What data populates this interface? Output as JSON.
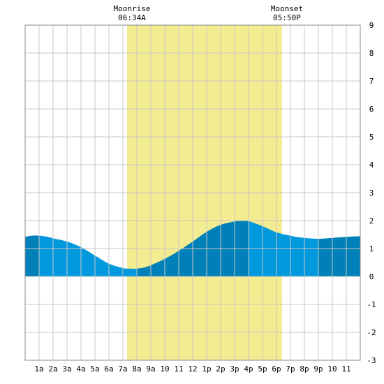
{
  "header": {
    "moonrise_label": "Moonrise",
    "moonrise_time": "06:34A",
    "moonset_label": "Moonset",
    "moonset_time": "05:50P"
  },
  "colors": {
    "daylight": "#f3ec90",
    "tide_light": "#0099dd",
    "tide_dark": "#0080b8",
    "grid": "#c8c8c8",
    "border": "#888888"
  },
  "chart_data": {
    "type": "area",
    "title": "",
    "xlabel": "",
    "ylabel": "",
    "xlim": [
      0,
      24
    ],
    "ylim": [
      -3,
      9
    ],
    "grid": true,
    "x_ticks": [
      {
        "x": 1,
        "label": "1a"
      },
      {
        "x": 2,
        "label": "2a"
      },
      {
        "x": 3,
        "label": "3a"
      },
      {
        "x": 4,
        "label": "4a"
      },
      {
        "x": 5,
        "label": "5a"
      },
      {
        "x": 6,
        "label": "6a"
      },
      {
        "x": 7,
        "label": "7a"
      },
      {
        "x": 8,
        "label": "8a"
      },
      {
        "x": 9,
        "label": "9a"
      },
      {
        "x": 10,
        "label": "10"
      },
      {
        "x": 11,
        "label": "11"
      },
      {
        "x": 12,
        "label": "12"
      },
      {
        "x": 13,
        "label": "1p"
      },
      {
        "x": 14,
        "label": "2p"
      },
      {
        "x": 15,
        "label": "3p"
      },
      {
        "x": 16,
        "label": "4p"
      },
      {
        "x": 17,
        "label": "5p"
      },
      {
        "x": 18,
        "label": "6p"
      },
      {
        "x": 19,
        "label": "7p"
      },
      {
        "x": 20,
        "label": "8p"
      },
      {
        "x": 21,
        "label": "9p"
      },
      {
        "x": 22,
        "label": "10"
      },
      {
        "x": 23,
        "label": "11"
      }
    ],
    "y_ticks": [
      -3,
      -2,
      -1,
      0,
      1,
      2,
      3,
      4,
      5,
      6,
      7,
      8,
      9
    ],
    "moon_visible": {
      "start": 7.3,
      "end": 18.4
    },
    "tide_bands": [
      {
        "start": 0,
        "end": 1,
        "shade": "dark"
      },
      {
        "start": 1,
        "end": 8,
        "shade": "light"
      },
      {
        "start": 8,
        "end": 16,
        "shade": "dark"
      },
      {
        "start": 16,
        "end": 21,
        "shade": "light"
      },
      {
        "start": 21,
        "end": 24,
        "shade": "dark"
      }
    ],
    "series": [
      {
        "x": [
          0,
          0.5,
          1,
          1.5,
          2,
          3,
          4,
          5,
          6,
          7,
          7.5,
          8,
          8.5,
          9,
          10,
          11,
          12,
          13,
          14,
          15,
          15.5,
          16,
          17,
          18,
          19,
          20,
          21,
          22,
          23,
          24
        ],
        "values": [
          1.42,
          1.46,
          1.46,
          1.43,
          1.37,
          1.25,
          1.05,
          0.75,
          0.46,
          0.3,
          0.28,
          0.28,
          0.32,
          0.4,
          0.63,
          0.92,
          1.25,
          1.6,
          1.85,
          1.97,
          2.0,
          1.98,
          1.8,
          1.58,
          1.46,
          1.38,
          1.35,
          1.38,
          1.42,
          1.44
        ]
      }
    ]
  }
}
